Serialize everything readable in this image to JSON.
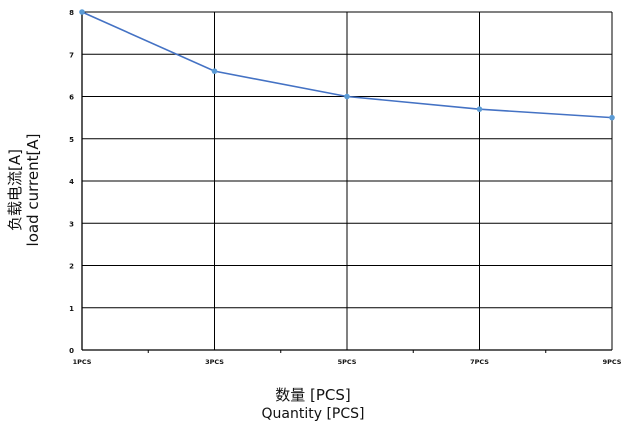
{
  "chart_data": {
    "type": "line",
    "categories": [
      "1PCS",
      "3PCS",
      "5PCS",
      "7PCS",
      "9PCS"
    ],
    "x": [
      1,
      3,
      5,
      7,
      9
    ],
    "series": [
      {
        "values": [
          8,
          6.6,
          6.0,
          5.7,
          5.5
        ],
        "color": "#4472c4"
      }
    ],
    "y_ticks": [
      "0",
      "1",
      "2",
      "3",
      "4",
      "5",
      "6",
      "7",
      "8"
    ],
    "ylim": [
      0,
      8
    ],
    "xlim": [
      1,
      9
    ],
    "ylabel_cn": "负载电流[A]",
    "ylabel_en": "load current[A]",
    "xlabel_cn": "数量 [PCS]",
    "xlabel_en": "Quantity [PCS]",
    "grid": true,
    "line_color": "#4472c4",
    "marker_color": "#5b9bd5"
  }
}
